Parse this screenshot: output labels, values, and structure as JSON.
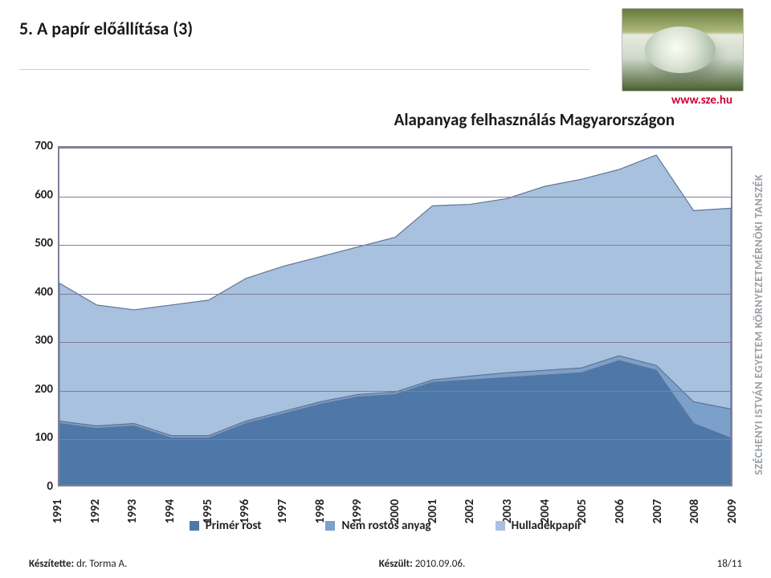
{
  "title": "5. A papír előállítása (3)",
  "url": "www.sze.hu",
  "subtitle": "Alapanyag felhasználás Magyarországon",
  "sidebar": "SZÉCHENYI ISTVÁN EGYETEM KÖRNYEZETMÉRNÖKI TANSZÉK",
  "footer": {
    "author_label": "Készítette:",
    "author": "dr. Torma A.",
    "date_label": "Készült:",
    "date": "2010.09.06.",
    "page": "18/11"
  },
  "chart": {
    "type": "area",
    "ylim": [
      0,
      700
    ],
    "ytick_step": 100,
    "yticks": [
      0,
      100,
      200,
      300,
      400,
      500,
      600,
      700
    ],
    "years": [
      1991,
      1992,
      1993,
      1994,
      1995,
      1996,
      1997,
      1998,
      1999,
      2000,
      2001,
      2002,
      2003,
      2004,
      2005,
      2006,
      2007,
      2008,
      2009
    ],
    "series": [
      {
        "name": "Primér rost",
        "color": "#4d78a7",
        "values": [
          130,
          120,
          125,
          100,
          100,
          130,
          150,
          170,
          185,
          190,
          215,
          220,
          225,
          230,
          235,
          260,
          240,
          130,
          100
        ]
      },
      {
        "name": "Nem rostos anyag",
        "color": "#7ba0c9",
        "values": [
          5,
          5,
          5,
          5,
          5,
          5,
          5,
          5,
          5,
          5,
          5,
          8,
          10,
          10,
          10,
          10,
          10,
          45,
          60
        ]
      },
      {
        "name": "Hulladékpapír",
        "color": "#a8c1de",
        "values": [
          285,
          250,
          235,
          270,
          280,
          295,
          300,
          300,
          305,
          320,
          360,
          355,
          360,
          380,
          390,
          385,
          435,
          395,
          415
        ]
      }
    ],
    "background_color": "#ffffff",
    "grid_color": "#808099",
    "label_fontsize": 15,
    "label_weight": "bold"
  },
  "legend": [
    {
      "label": "Primér rost",
      "color": "#4d78a7"
    },
    {
      "label": "Nem rostos anyag",
      "color": "#7ba0c9"
    },
    {
      "label": "Hulladékpapír",
      "color": "#a8c1de"
    }
  ]
}
